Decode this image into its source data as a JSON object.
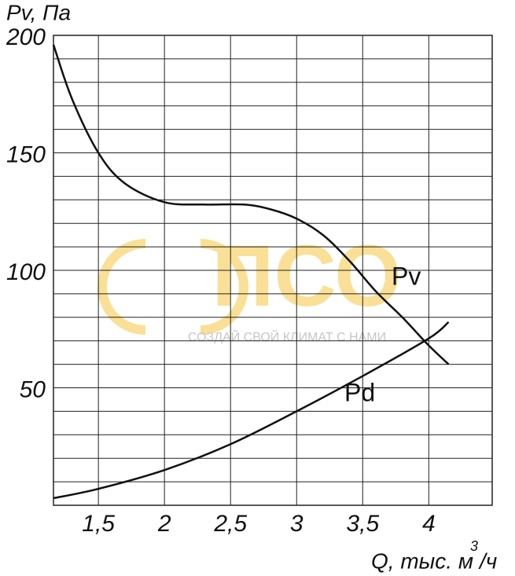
{
  "chart_data": {
    "type": "line",
    "y_label": "Pv, Па",
    "x_label": "Q, тыс. м",
    "x_label_superscript": "3",
    "x_label_suffix": "/ч",
    "xlim": [
      1.16,
      4.48
    ],
    "xticks": [
      {
        "value": 1.5,
        "label": "1,5"
      },
      2,
      {
        "value": 2.5,
        "label": "2,5"
      },
      3,
      {
        "value": 3.5,
        "label": "3,5"
      },
      4
    ],
    "ylim": [
      0,
      200
    ],
    "yticks": [
      50,
      100,
      150,
      200
    ],
    "y_minor_ticks": [
      10,
      20,
      30,
      40,
      60,
      70,
      80,
      90,
      110,
      120,
      130,
      140,
      160,
      170,
      180,
      190
    ],
    "grid": true,
    "series": [
      {
        "name": "Pv",
        "color": "#111111",
        "x": [
          1.16,
          1.3,
          1.5,
          1.7,
          2.0,
          2.3,
          2.6,
          2.8,
          3.0,
          3.2,
          3.4,
          3.6,
          3.8,
          4.0,
          4.15
        ],
        "values": [
          196,
          173,
          150,
          137,
          129,
          128,
          128,
          126,
          122,
          115,
          104,
          91,
          80,
          68,
          60
        ]
      },
      {
        "name": "Pd",
        "color": "#111111",
        "x": [
          1.16,
          1.5,
          2.0,
          2.5,
          3.0,
          3.5,
          4.0,
          4.15
        ],
        "values": [
          3,
          7,
          15,
          26,
          40,
          55,
          71,
          78
        ]
      }
    ],
    "watermark": {
      "logo": "ПСО",
      "slogan": "СОЗДАЙ СВОЙ КЛИМАТ С НАМИ"
    }
  }
}
